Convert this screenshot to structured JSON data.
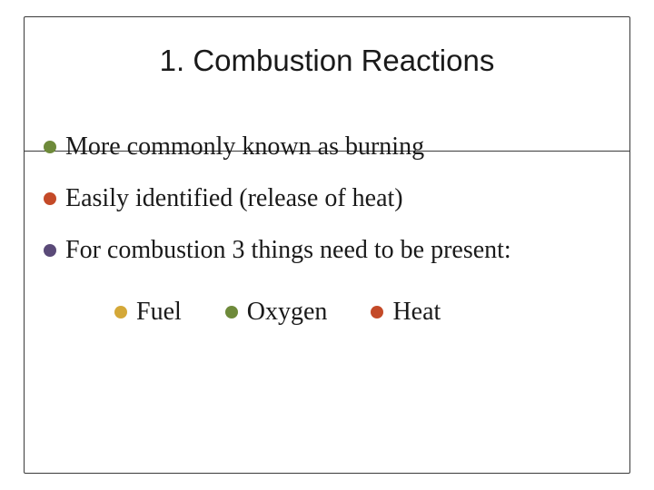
{
  "title": "1. Combustion Reactions",
  "bullets": [
    {
      "text": "More commonly known as burning",
      "color": "#6e8a3a"
    },
    {
      "text": "Easily identified (release of heat)",
      "color": "#c44a28"
    },
    {
      "text": "For combustion 3 things need to be present:",
      "color": "#5a4a78"
    }
  ],
  "subitems": [
    {
      "text": "Fuel",
      "color": "#d4a838"
    },
    {
      "text": "Oxygen",
      "color": "#6e8a3a"
    },
    {
      "text": "Heat",
      "color": "#c44a28"
    }
  ],
  "colors": {
    "background": "#ffffff",
    "border": "#3a3a3a",
    "text": "#1a1a1a"
  },
  "typography": {
    "title_fontsize": 33,
    "title_family": "Arial",
    "body_fontsize": 28,
    "body_family": "Georgia"
  }
}
